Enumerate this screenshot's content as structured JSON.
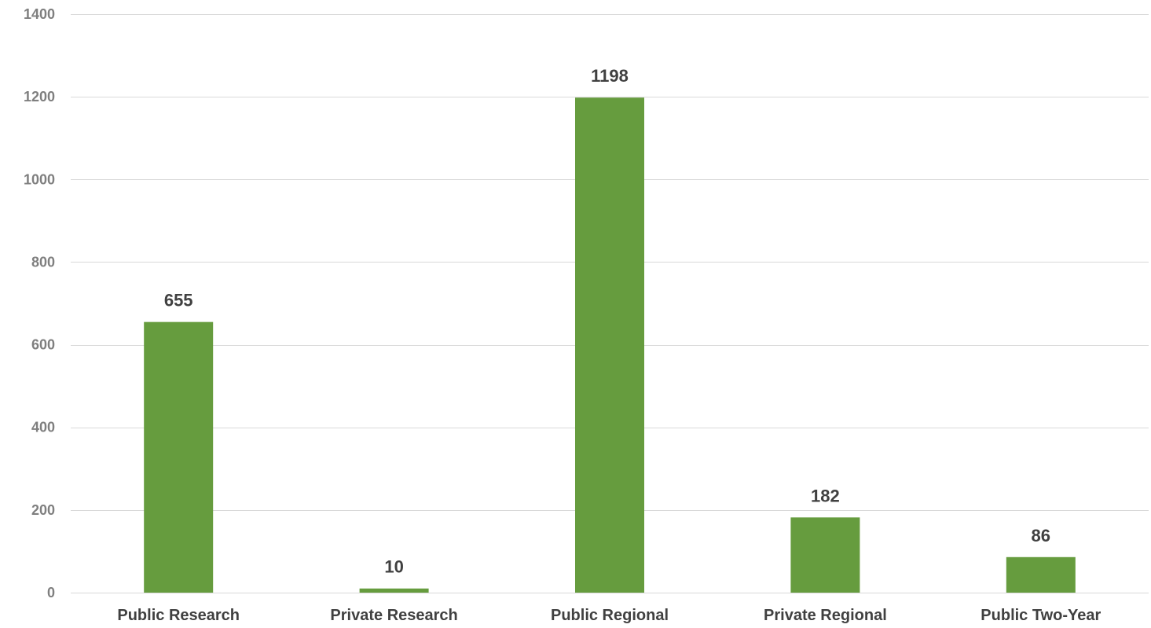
{
  "chart_data": {
    "type": "bar",
    "categories": [
      "Public Research",
      "Private Research",
      "Public Regional",
      "Private Regional",
      "Public Two-Year"
    ],
    "values": [
      655,
      10,
      1198,
      182,
      86
    ],
    "title": "",
    "xlabel": "",
    "ylabel": "",
    "ylim": [
      0,
      1400
    ],
    "yticks": [
      0,
      200,
      400,
      600,
      800,
      1000,
      1200,
      1400
    ],
    "data_labels": [
      "655",
      "10",
      "1198",
      "182",
      "86"
    ],
    "grid": true,
    "legend": "none",
    "colors": {
      "bar": "#669c3e",
      "grid": "#d9d9d9",
      "tick_text": "#7f7f7f",
      "label_text": "#404040"
    }
  }
}
